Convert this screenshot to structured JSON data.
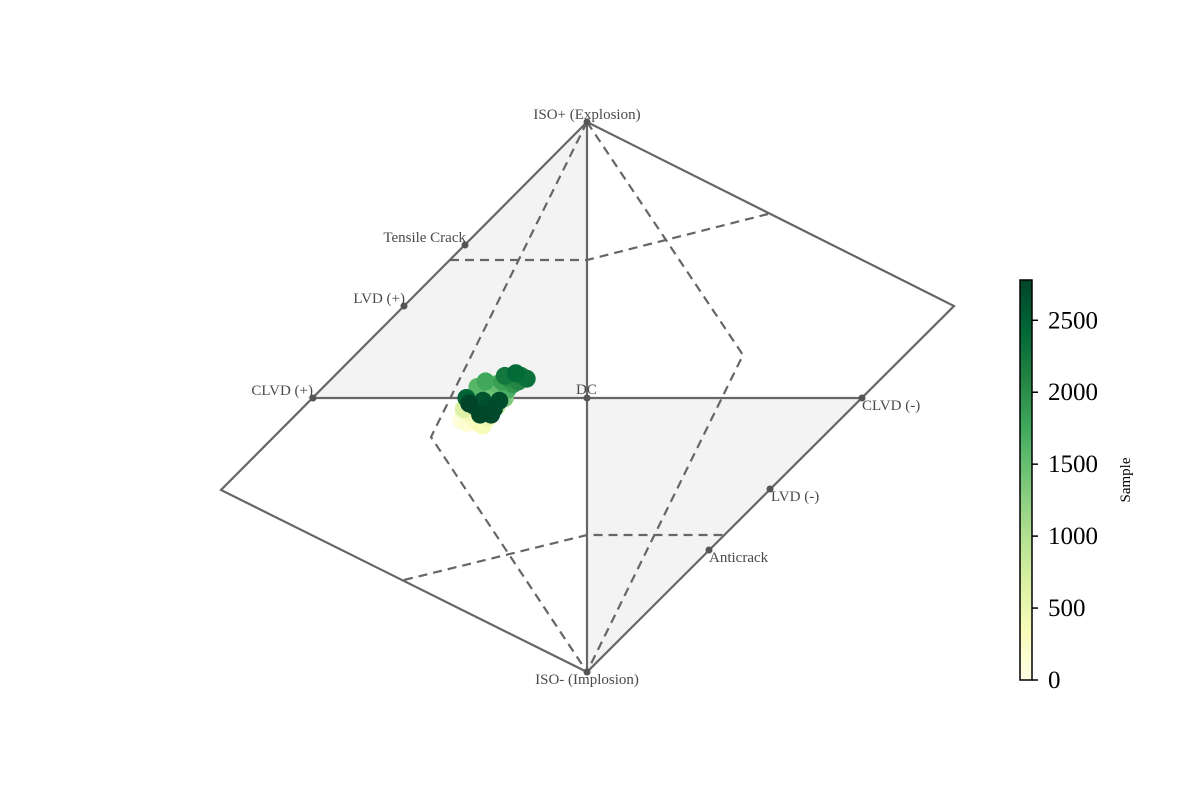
{
  "chart_data": {
    "type": "scatter",
    "title": "",
    "labels": {
      "iso_plus": "ISO+ (Explosion)",
      "iso_minus": "ISO- (Implosion)",
      "tensile_crack": "Tensile Crack",
      "lvd_plus": "LVD (+)",
      "clvd_plus": "CLVD (+)",
      "dc": "DC",
      "clvd_minus": "CLVD (-)",
      "lvd_minus": "LVD (-)",
      "anticrack": "Anticrack"
    },
    "colorbar": {
      "title": "Sample",
      "cmap": "YlGn",
      "min": 0,
      "max": 2780,
      "ticks": [
        "0",
        "500",
        "1000",
        "1500",
        "2000",
        "2500"
      ],
      "tick_values": [
        0,
        500,
        1000,
        1500,
        2000,
        2500
      ]
    },
    "series": [
      {
        "description_note": "",
        "points": [
          [
            -0.46,
            -0.08,
            80
          ],
          [
            -0.44,
            -0.09,
            150
          ],
          [
            -0.42,
            -0.07,
            220
          ],
          [
            -0.4,
            -0.09,
            300
          ],
          [
            -0.38,
            -0.1,
            360
          ],
          [
            -0.43,
            -0.05,
            420
          ],
          [
            -0.36,
            -0.07,
            480
          ],
          [
            -0.39,
            -0.04,
            560
          ],
          [
            -0.45,
            -0.04,
            640
          ],
          [
            -0.41,
            -0.02,
            720
          ],
          [
            -0.35,
            -0.05,
            800
          ],
          [
            -0.37,
            -0.02,
            880
          ],
          [
            -0.33,
            -0.03,
            960
          ],
          [
            -0.42,
            0.0,
            1040
          ],
          [
            -0.39,
            0.01,
            1120
          ],
          [
            -0.35,
            0.02,
            1200
          ],
          [
            -0.32,
            0.01,
            1280
          ],
          [
            -0.3,
            0.0,
            1360
          ],
          [
            -0.36,
            0.04,
            1440
          ],
          [
            -0.33,
            0.05,
            1520
          ],
          [
            -0.4,
            0.04,
            1600
          ],
          [
            -0.29,
            0.03,
            1680
          ],
          [
            -0.37,
            0.06,
            1760
          ],
          [
            -0.31,
            0.06,
            1840
          ],
          [
            -0.27,
            0.05,
            1920
          ],
          [
            -0.28,
            0.07,
            2000
          ],
          [
            -0.25,
            0.06,
            2080
          ],
          [
            -0.24,
            0.08,
            2160
          ],
          [
            -0.3,
            0.08,
            2240
          ],
          [
            -0.22,
            0.07,
            2320
          ],
          [
            -0.26,
            0.09,
            2400
          ],
          [
            -0.44,
            0.0,
            2480
          ],
          [
            -0.41,
            -0.03,
            2560
          ],
          [
            -0.38,
            -0.01,
            2620
          ],
          [
            -0.36,
            -0.03,
            2680
          ],
          [
            -0.34,
            -0.04,
            2720
          ],
          [
            -0.39,
            -0.06,
            2760
          ],
          [
            -0.43,
            -0.02,
            2780
          ],
          [
            -0.32,
            -0.01,
            2700
          ],
          [
            -0.35,
            -0.06,
            2740
          ]
        ]
      }
    ]
  }
}
